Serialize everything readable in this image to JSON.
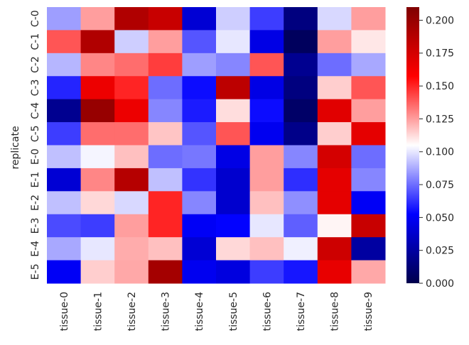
{
  "chart_data": {
    "type": "heatmap",
    "title": "",
    "xlabel": "",
    "ylabel": "replicate",
    "x_categories": [
      "tissue-0",
      "tissue-1",
      "tissue-2",
      "tissue-3",
      "tissue-4",
      "tissue-5",
      "tissue-6",
      "tissue-7",
      "tissue-8",
      "tissue-9"
    ],
    "y_categories": [
      "C-0",
      "C-1",
      "C-2",
      "C-3",
      "C-4",
      "C-5",
      "E-0",
      "E-1",
      "E-2",
      "E-3",
      "E-4",
      "E-5"
    ],
    "values": [
      [
        0.085,
        0.125,
        0.19,
        0.18,
        0.04,
        0.095,
        0.065,
        0.015,
        0.097,
        0.125
      ],
      [
        0.14,
        0.19,
        0.095,
        0.125,
        0.07,
        0.1,
        0.045,
        0.005,
        0.125,
        0.11
      ],
      [
        0.09,
        0.13,
        0.135,
        0.145,
        0.085,
        0.08,
        0.14,
        0.02,
        0.075,
        0.087
      ],
      [
        0.06,
        0.165,
        0.15,
        0.075,
        0.055,
        0.185,
        0.045,
        0.015,
        0.115,
        0.14
      ],
      [
        0.02,
        0.2,
        0.165,
        0.08,
        0.058,
        0.112,
        0.055,
        0.008,
        0.17,
        0.125
      ],
      [
        0.065,
        0.135,
        0.135,
        0.117,
        0.07,
        0.14,
        0.048,
        0.018,
        0.115,
        0.168
      ],
      [
        0.092,
        0.103,
        0.118,
        0.075,
        0.077,
        0.045,
        0.125,
        0.08,
        0.175,
        0.075
      ],
      [
        0.04,
        0.13,
        0.188,
        0.092,
        0.063,
        0.038,
        0.125,
        0.062,
        0.168,
        0.08
      ],
      [
        0.092,
        0.113,
        0.097,
        0.15,
        0.08,
        0.038,
        0.118,
        0.082,
        0.168,
        0.05
      ],
      [
        0.068,
        0.065,
        0.125,
        0.15,
        0.05,
        0.053,
        0.1,
        0.072,
        0.107,
        0.18
      ],
      [
        0.087,
        0.1,
        0.122,
        0.118,
        0.04,
        0.113,
        0.118,
        0.102,
        0.178,
        0.025
      ],
      [
        0.05,
        0.115,
        0.123,
        0.195,
        0.048,
        0.043,
        0.065,
        0.057,
        0.167,
        0.123
      ]
    ],
    "colorbar": {
      "min": 0.0,
      "max": 0.21,
      "colormap": "seismic",
      "ticks": [
        0.0,
        0.025,
        0.05,
        0.075,
        0.1,
        0.125,
        0.15,
        0.175,
        0.2
      ],
      "tick_labels": [
        "0.000",
        "0.025",
        "0.050",
        "0.075",
        "0.100",
        "0.125",
        "0.150",
        "0.175",
        "0.200"
      ]
    },
    "grid": false
  }
}
